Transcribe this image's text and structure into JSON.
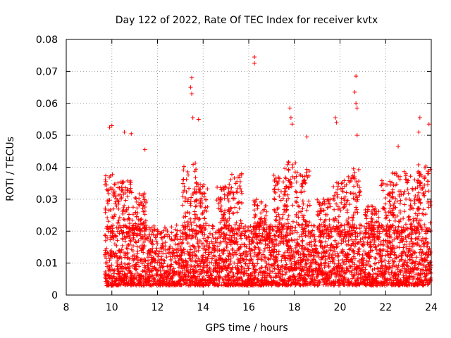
{
  "chart_data": {
    "type": "scatter",
    "title": "Day 122 of 2022, Rate Of TEC Index for receiver kvtx",
    "xlabel": "GPS time / hours",
    "ylabel": "ROTI / TECUs",
    "xlim": [
      8,
      24
    ],
    "ylim": [
      0,
      0.08
    ],
    "x_ticks": [
      "8",
      "10",
      "12",
      "14",
      "16",
      "18",
      "20",
      "22",
      "24"
    ],
    "y_ticks": [
      "0",
      "0.01",
      "0.02",
      "0.03",
      "0.04",
      "0.05",
      "0.06",
      "0.07",
      "0.08"
    ],
    "grid": true,
    "legend": "none",
    "marker": "+",
    "color": "#ff0000",
    "x_start": 9.7,
    "x_end": 24.0,
    "dense_band": [
      0.003,
      0.022
    ],
    "notable_points": [
      {
        "x": 9.9,
        "y": 0.0525
      },
      {
        "x": 10.0,
        "y": 0.053
      },
      {
        "x": 10.55,
        "y": 0.051
      },
      {
        "x": 10.85,
        "y": 0.0505
      },
      {
        "x": 11.45,
        "y": 0.0455
      },
      {
        "x": 13.5,
        "y": 0.068
      },
      {
        "x": 13.45,
        "y": 0.065
      },
      {
        "x": 13.5,
        "y": 0.063
      },
      {
        "x": 13.55,
        "y": 0.0555
      },
      {
        "x": 13.8,
        "y": 0.055
      },
      {
        "x": 16.25,
        "y": 0.0745
      },
      {
        "x": 16.25,
        "y": 0.0725
      },
      {
        "x": 17.8,
        "y": 0.0585
      },
      {
        "x": 17.85,
        "y": 0.0555
      },
      {
        "x": 17.9,
        "y": 0.0535
      },
      {
        "x": 18.55,
        "y": 0.0495
      },
      {
        "x": 19.8,
        "y": 0.0555
      },
      {
        "x": 19.85,
        "y": 0.054
      },
      {
        "x": 20.7,
        "y": 0.0685
      },
      {
        "x": 20.65,
        "y": 0.0635
      },
      {
        "x": 20.7,
        "y": 0.06
      },
      {
        "x": 20.75,
        "y": 0.0585
      },
      {
        "x": 20.75,
        "y": 0.05
      },
      {
        "x": 22.55,
        "y": 0.0465
      },
      {
        "x": 23.5,
        "y": 0.0555
      },
      {
        "x": 23.45,
        "y": 0.051
      },
      {
        "x": 23.9,
        "y": 0.0535
      }
    ]
  }
}
